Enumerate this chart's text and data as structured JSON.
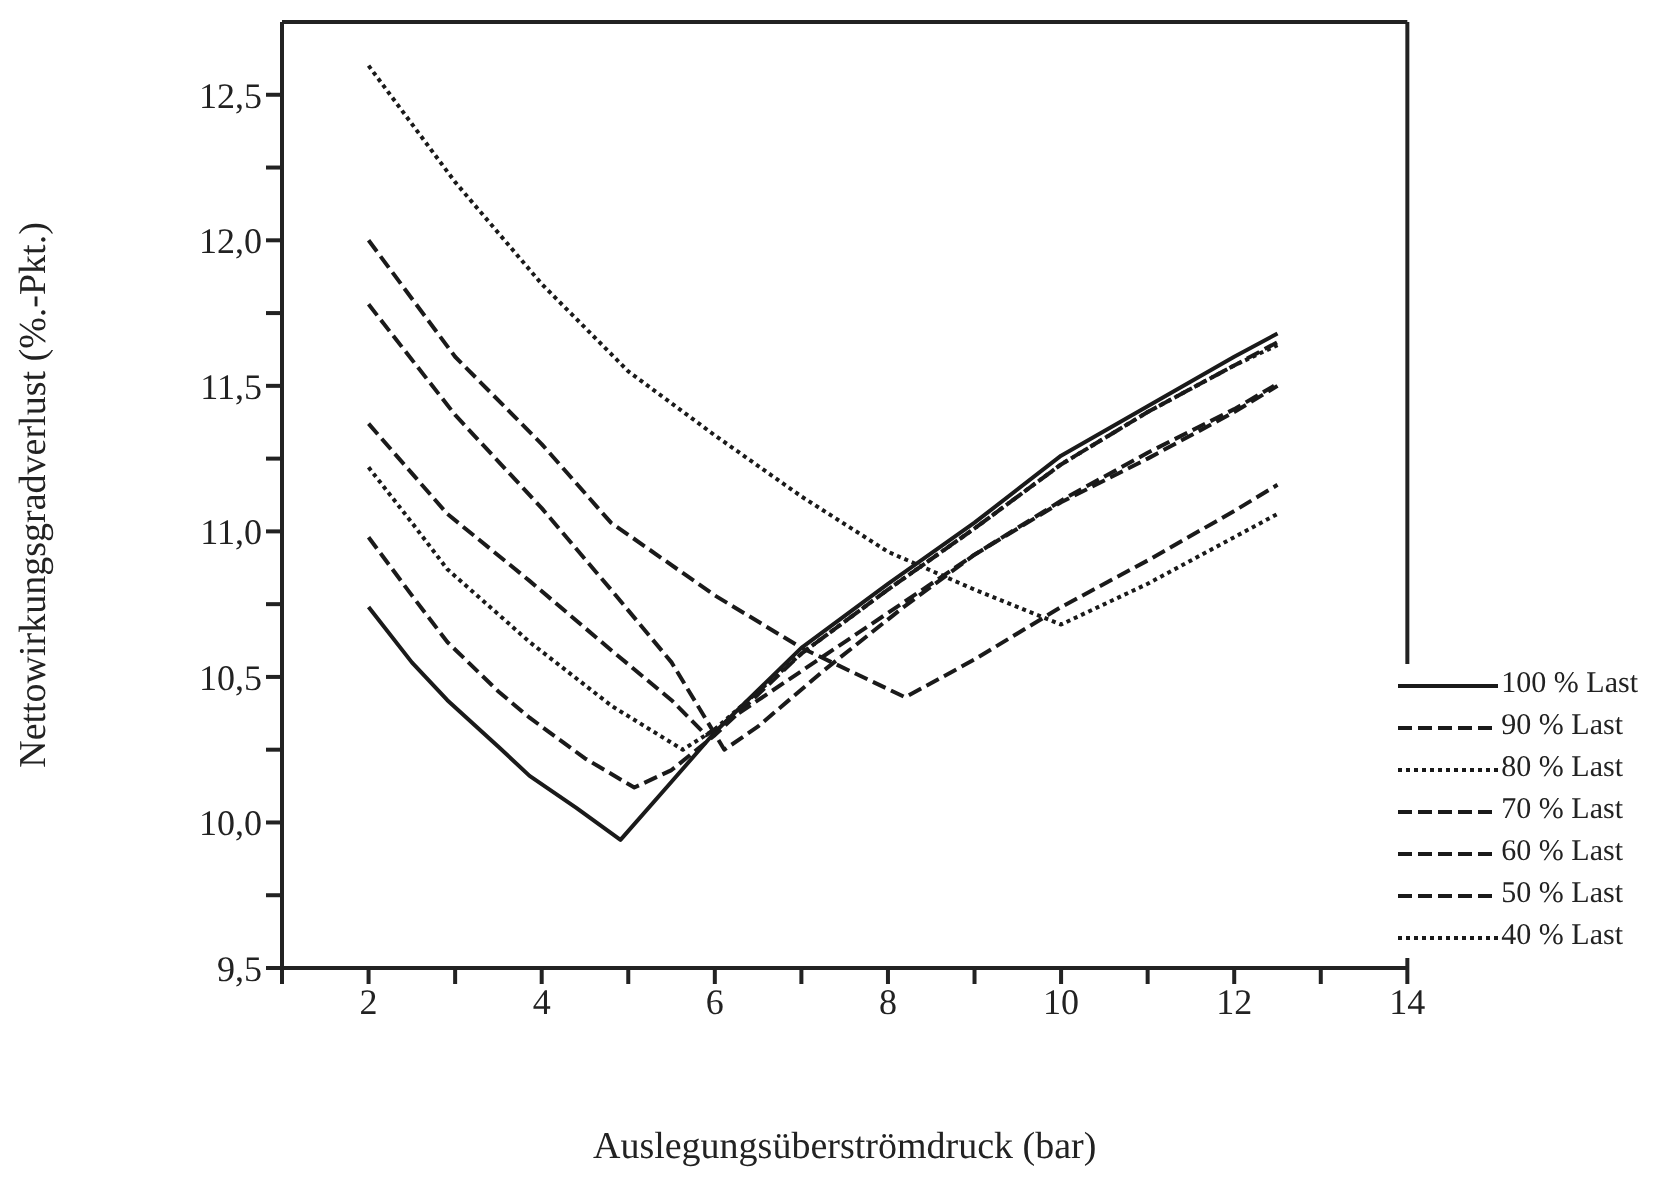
{
  "chart_data": {
    "type": "line",
    "xlabel": "Auslegungsüberströmdruck (bar)",
    "ylabel": "Nettowirkungsgradverlust  (%.-Pkt.)",
    "xlim": [
      1,
      14
    ],
    "xticks": [
      {
        "value": 1,
        "label": null
      },
      2,
      {
        "value": 3,
        "label": null
      },
      4,
      {
        "value": 5,
        "label": null
      },
      6,
      {
        "value": 7,
        "label": null
      },
      8,
      {
        "value": 9,
        "label": null
      },
      10,
      {
        "value": 11,
        "label": null
      },
      12,
      {
        "value": 13,
        "label": null
      },
      14
    ],
    "ylim": [
      9.5,
      12.75
    ],
    "yticks": [
      {
        "value": 9.5,
        "label": "9,5"
      },
      {
        "value": 9.75,
        "label": null
      },
      {
        "value": 10,
        "label": "10,0"
      },
      {
        "value": 10.25,
        "label": null
      },
      {
        "value": 10.5,
        "label": "10,5"
      },
      {
        "value": 10.75,
        "label": null
      },
      {
        "value": 11,
        "label": "11,0"
      },
      {
        "value": 11.25,
        "label": null
      },
      {
        "value": 11.5,
        "label": "11,5"
      },
      {
        "value": 11.75,
        "label": null
      },
      {
        "value": 12,
        "label": "12,0"
      },
      {
        "value": 12.25,
        "label": null
      },
      {
        "value": 12.5,
        "label": "12,5"
      }
    ],
    "grid": false,
    "legend": "bottom right",
    "marker": "none",
    "series": [
      {
        "name": "100 % Last",
        "color": "#1a1a1a",
        "line_style": "solid",
        "x": [
          2,
          2.5,
          2.91,
          3.5,
          3.86,
          4.4,
          4.91,
          5.5,
          6,
          7,
          8,
          9,
          10,
          11,
          12,
          12.5
        ],
        "values": [
          10.74,
          10.55,
          10.42,
          10.26,
          10.16,
          10.05,
          9.94,
          10.14,
          10.31,
          10.6,
          10.82,
          11.03,
          11.26,
          11.43,
          11.6,
          11.68
        ]
      },
      {
        "name": "90 % Last",
        "color": "#1a1a1a",
        "line_style": "dashed",
        "x": [
          2,
          2.5,
          2.91,
          3.5,
          3.86,
          4.5,
          5.07,
          5.5,
          6,
          7,
          8,
          9,
          10,
          11,
          12,
          12.5
        ],
        "values": [
          10.98,
          10.78,
          10.62,
          10.45,
          10.36,
          10.22,
          10.12,
          10.18,
          10.3,
          10.58,
          10.8,
          11.01,
          11.23,
          11.41,
          11.57,
          11.65
        ]
      },
      {
        "name": "80 % Last",
        "color": "#1a1a1a",
        "line_style": "dotted",
        "x": [
          2,
          2.5,
          2.91,
          3.86,
          4.81,
          5.63,
          6,
          7,
          8,
          9,
          10,
          11,
          12,
          12.5
        ],
        "values": [
          11.22,
          11.03,
          10.87,
          10.62,
          10.4,
          10.25,
          10.32,
          10.58,
          10.8,
          11.01,
          11.23,
          11.41,
          11.57,
          11.64
        ]
      },
      {
        "name": "70 % Last",
        "color": "#1a1a1a",
        "line_style": "dashed",
        "x": [
          2,
          2.91,
          3.86,
          4.81,
          5.5,
          5.9,
          6.5,
          7,
          8,
          9,
          10,
          11,
          12,
          12.5
        ],
        "values": [
          11.37,
          11.06,
          10.83,
          10.59,
          10.42,
          10.3,
          10.42,
          10.52,
          10.72,
          10.92,
          11.1,
          11.25,
          11.41,
          11.5
        ]
      },
      {
        "name": "60 % Last",
        "color": "#1a1a1a",
        "line_style": "dashed",
        "x": [
          2,
          3,
          4,
          4.8,
          5.5,
          6.11,
          6.5,
          7.25,
          8.18,
          9,
          10.08,
          11,
          12,
          12.46
        ],
        "values": [
          11.78,
          11.4,
          11.08,
          10.8,
          10.55,
          10.25,
          10.33,
          10.52,
          10.74,
          10.92,
          11.12,
          11.27,
          11.42,
          11.5
        ]
      },
      {
        "name": "50 % Last",
        "color": "#1a1a1a",
        "line_style": "dashed",
        "x": [
          2,
          3,
          4,
          4.8,
          6,
          7,
          8.2,
          9,
          10,
          11,
          12,
          12.5
        ],
        "values": [
          12.0,
          11.6,
          11.3,
          11.03,
          10.78,
          10.6,
          10.43,
          10.56,
          10.74,
          10.9,
          11.07,
          11.16
        ]
      },
      {
        "name": "40 % Last",
        "color": "#1a1a1a",
        "line_style": "dotted",
        "x": [
          2,
          3,
          4,
          5,
          6,
          7,
          8,
          9,
          10,
          11,
          12,
          12.5
        ],
        "values": [
          12.6,
          12.2,
          11.85,
          11.55,
          11.33,
          11.12,
          10.93,
          10.8,
          10.68,
          10.82,
          10.98,
          11.06
        ]
      }
    ]
  }
}
